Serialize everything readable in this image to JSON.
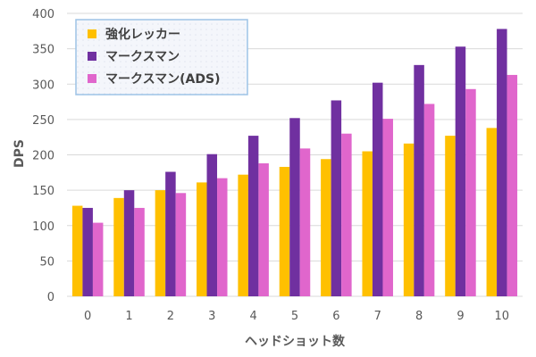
{
  "chart_data": {
    "type": "bar",
    "title": "",
    "xlabel": "ヘッドショット数",
    "ylabel": "DPS",
    "categories": [
      "0",
      "1",
      "2",
      "3",
      "4",
      "5",
      "6",
      "7",
      "8",
      "9",
      "10"
    ],
    "ylim": [
      0,
      400
    ],
    "yticks": [
      0,
      50,
      100,
      150,
      200,
      250,
      300,
      350,
      400
    ],
    "grid": true,
    "legend_position": "top-left",
    "series": [
      {
        "name": "強化レッカー",
        "color": "#FFC000",
        "values": [
          128,
          139,
          150,
          161,
          172,
          183,
          194,
          205,
          216,
          227,
          238
        ]
      },
      {
        "name": "マークスマン",
        "color": "#7030A0",
        "values": [
          125,
          150,
          176,
          201,
          227,
          252,
          277,
          302,
          327,
          353,
          378
        ]
      },
      {
        "name": "マークスマン(ADS)",
        "color": "#E066CC",
        "values": [
          104,
          125,
          146,
          167,
          188,
          209,
          230,
          251,
          272,
          293,
          313
        ]
      }
    ]
  }
}
